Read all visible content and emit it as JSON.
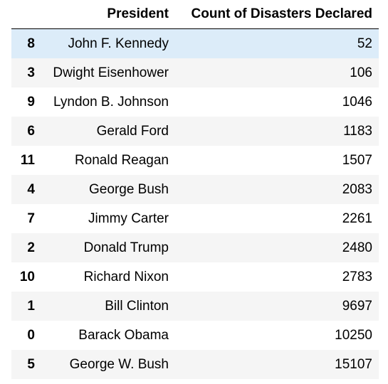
{
  "table": {
    "columns": [
      "",
      "President",
      "Count of Disasters Declared"
    ],
    "rows": [
      {
        "index": "8",
        "president": "John F. Kennedy",
        "count": "52"
      },
      {
        "index": "3",
        "president": "Dwight Eisenhower",
        "count": "106"
      },
      {
        "index": "9",
        "president": "Lyndon B. Johnson",
        "count": "1046"
      },
      {
        "index": "6",
        "president": "Gerald Ford",
        "count": "1183"
      },
      {
        "index": "11",
        "president": "Ronald Reagan",
        "count": "1507"
      },
      {
        "index": "4",
        "president": "George Bush",
        "count": "2083"
      },
      {
        "index": "7",
        "president": "Jimmy Carter",
        "count": "2261"
      },
      {
        "index": "2",
        "president": "Donald Trump",
        "count": "2480"
      },
      {
        "index": "10",
        "president": "Richard Nixon",
        "count": "2783"
      },
      {
        "index": "1",
        "president": "Bill Clinton",
        "count": "9697"
      },
      {
        "index": "0",
        "president": "Barack Obama",
        "count": "10250"
      },
      {
        "index": "5",
        "president": "George W. Bush",
        "count": "15107"
      }
    ]
  },
  "colors": {
    "highlight_row": "#dcecf9",
    "stripe_row": "#f5f5f5",
    "header_border": "#000000"
  }
}
